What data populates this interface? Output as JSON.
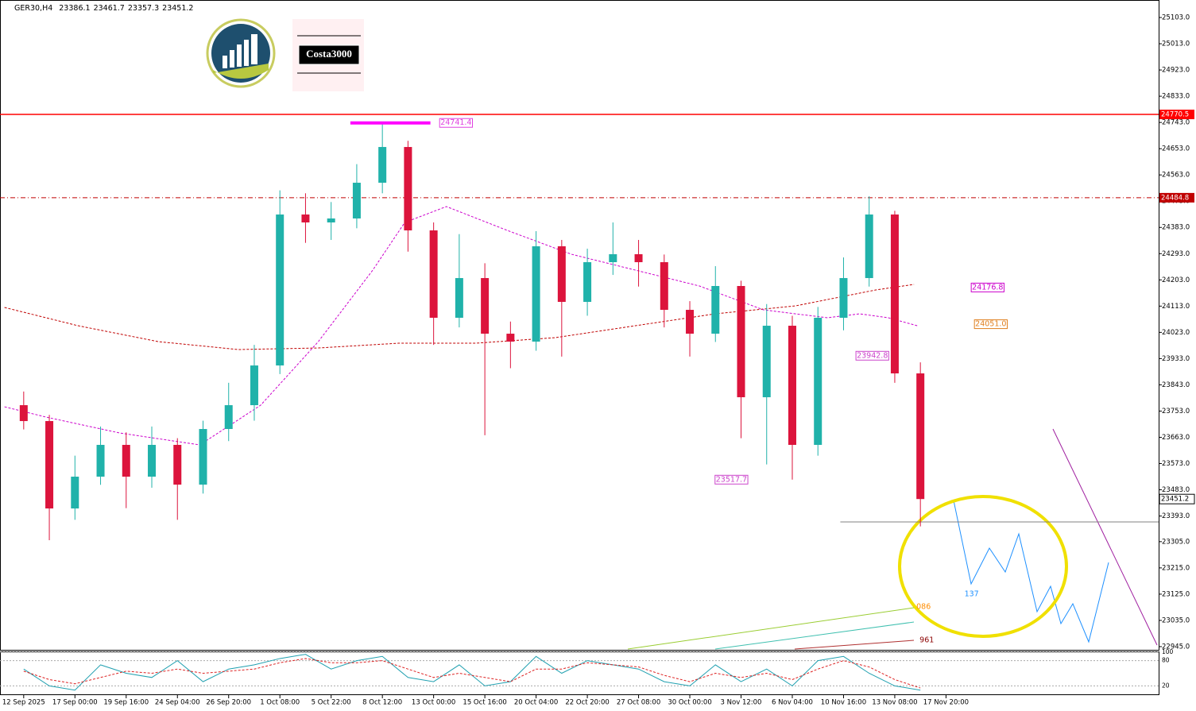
{
  "branding": {
    "watermark": "Costa3000"
  },
  "chart_data": [
    {
      "type": "candlestick",
      "title": "GER30,H4",
      "ohlc_readout": [
        23386.1,
        23461.7,
        23357.3,
        23451.2
      ],
      "xlim": [
        -7.4,
        354.4
      ],
      "ylim": [
        22934,
        25163
      ],
      "xticks": [
        {
          "value": 0,
          "label": "12 Sep 2025"
        },
        {
          "value": 16,
          "label": "17 Sep 00:00"
        },
        {
          "value": 32,
          "label": "19 Sep 16:00"
        },
        {
          "value": 48,
          "label": "24 Sep 04:00"
        },
        {
          "value": 64,
          "label": "26 Sep 20:00"
        },
        {
          "value": 80,
          "label": "1 Oct 08:00"
        },
        {
          "value": 96,
          "label": "5 Oct 22:00"
        },
        {
          "value": 112,
          "label": "8 Oct 12:00"
        },
        {
          "value": 128,
          "label": "13 Oct 00:00"
        },
        {
          "value": 144,
          "label": "15 Oct 16:00"
        },
        {
          "value": 160,
          "label": "20 Oct 04:00"
        },
        {
          "value": 176,
          "label": "22 Oct 20:00"
        },
        {
          "value": 192,
          "label": "27 Oct 08:00"
        },
        {
          "value": 208,
          "label": "30 Oct 00:00"
        },
        {
          "value": 224,
          "label": "3 Nov 12:00"
        },
        {
          "value": 240,
          "label": "6 Nov 04:00"
        },
        {
          "value": 256,
          "label": "10 Nov 16:00"
        },
        {
          "value": 272,
          "label": "13 Nov 08:00"
        },
        {
          "value": 288,
          "label": "17 Nov 20:00"
        }
      ],
      "yticks": [
        {
          "value": 25103,
          "label": "25103.0"
        },
        {
          "value": 25013,
          "label": "25013.0"
        },
        {
          "value": 24923,
          "label": "24923.0"
        },
        {
          "value": 24833,
          "label": "24833.0"
        },
        {
          "value": 24743,
          "label": "24743.0"
        },
        {
          "value": 24653,
          "label": "24653.0"
        },
        {
          "value": 24563,
          "label": "24563.0"
        },
        {
          "value": 24473,
          "label": "24473.0"
        },
        {
          "value": 24383,
          "label": "24383.0"
        },
        {
          "value": 24293,
          "label": "24293.0"
        },
        {
          "value": 24203,
          "label": "24203.0"
        },
        {
          "value": 24113,
          "label": "24113.0"
        },
        {
          "value": 24023,
          "label": "24023.0"
        },
        {
          "value": 23933,
          "label": "23933.0"
        },
        {
          "value": 23843,
          "label": "23843.0"
        },
        {
          "value": 23753,
          "label": "23753.0"
        },
        {
          "value": 23663,
          "label": "23663.0"
        },
        {
          "value": 23573,
          "label": "23573.0"
        },
        {
          "value": 23483,
          "label": "23483.0"
        },
        {
          "value": 23393,
          "label": "23393.0"
        },
        {
          "value": 23305,
          "label": "23305.0"
        },
        {
          "value": 23215,
          "label": "23215.0"
        },
        {
          "value": 23125,
          "label": "23125.0"
        },
        {
          "value": 23035,
          "label": "23035.0"
        },
        {
          "value": 22945,
          "label": "22945.0"
        }
      ],
      "up_color": "#20b2aa",
      "down_color": "#dc143c",
      "x": [
        0,
        8,
        16,
        24,
        32,
        40,
        48,
        56,
        64,
        72,
        80,
        88,
        96,
        104,
        112,
        120,
        128,
        136,
        144,
        152,
        160,
        168,
        176,
        184,
        192,
        200,
        208,
        216,
        224,
        232,
        240,
        248,
        256,
        264,
        272,
        280
      ],
      "open": [
        23773.2,
        23718.7,
        23418.9,
        23528.0,
        23637.0,
        23528.0,
        23637.0,
        23500.7,
        23691.5,
        23773.2,
        23909.4,
        24427.2,
        24400.0,
        24413.6,
        24536.2,
        24658.8,
        24372.7,
        24073.0,
        24209.2,
        24018.4,
        23991.2,
        24318.2,
        24127.5,
        24263.7,
        24291.0,
        24263.7,
        24100.2,
        24018.4,
        24182.0,
        23800.4,
        24045.7,
        23637.0,
        24073.0,
        24209.2,
        24427.2,
        23882.2
      ],
      "high": [
        23820,
        23740,
        23600,
        23700,
        23680,
        23700,
        23660,
        23720,
        23850,
        23980,
        24510,
        24500,
        24470,
        24600,
        24741.4,
        24680,
        24400,
        24360,
        24260,
        24060,
        24370,
        24340,
        24310,
        24400,
        24340,
        24290,
        24130,
        24250,
        24200,
        24120,
        24080,
        24110,
        24280,
        24490,
        24440,
        23920
      ],
      "low": [
        23690,
        23310,
        23380,
        23500,
        23420,
        23490,
        23380,
        23470,
        23650,
        23720,
        23880,
        24330,
        24340,
        24380,
        24500,
        24300,
        23980,
        24040,
        23670,
        23900,
        23960,
        23940,
        24080,
        24220,
        24180,
        24040,
        23940,
        23990,
        23660,
        23570,
        23517.7,
        23600,
        24030,
        24180,
        23850,
        23357.3
      ],
      "close": [
        23718.7,
        23418.9,
        23528.0,
        23637.0,
        23528.0,
        23637.0,
        23500.7,
        23691.5,
        23773.2,
        23909.4,
        24427.2,
        24400.0,
        24413.6,
        24536.2,
        24658.8,
        24372.7,
        24073.0,
        24209.2,
        24018.4,
        23991.2,
        24318.2,
        24127.5,
        24263.7,
        24291.0,
        24263.7,
        24100.2,
        24018.4,
        24182.0,
        23800.4,
        24045.7,
        23637.0,
        24073.0,
        24209.2,
        24427.2,
        23882.2,
        23451.2
      ],
      "ma": [
        {
          "color": "#c00000",
          "x": [
            -6,
            17,
            42,
            67,
            92,
            117,
            141,
            166,
            191,
            216,
            241,
            266,
            278
          ],
          "values": [
            24108.4,
            24045.7,
            23991.2,
            23964.0,
            23969.4,
            23985.7,
            23985.7,
            24004.8,
            24045.7,
            24086.6,
            24113.8,
            24168.3,
            24187.4
          ]
        },
        {
          "color": "#cc00cc",
          "x": [
            -6,
            7,
            30,
            55,
            74,
            92,
            109,
            119,
            132,
            151,
            171,
            191,
            211,
            231,
            251,
            261,
            270,
            279
          ],
          "values": [
            23767.7,
            23732.3,
            23677.8,
            23637.0,
            23773.2,
            23991.2,
            24236.5,
            24400.0,
            24454.5,
            24372.7,
            24291.0,
            24236.5,
            24182.0,
            24100.2,
            24073.0,
            24086.6,
            24073.0,
            24045.7
          ]
        }
      ],
      "levels": [
        {
          "value": 24770.5,
          "color": "#ff0000",
          "style": "solid"
        },
        {
          "value": 24484.8,
          "color": "#c00000",
          "style": "dashdot"
        },
        {
          "value": 23372.6,
          "color": "#808080",
          "style": "solid",
          "from": 255
        }
      ],
      "current": 23451.2,
      "annotations": [
        {
          "text": "24741.4",
          "x": 135,
          "y": 24741.4,
          "color": "#e040e0",
          "box": true,
          "highlight": [
            102,
            127
          ]
        },
        {
          "text": "24176.8",
          "x": 301,
          "y": 24176.8,
          "color": "#cc00cc",
          "box": true
        },
        {
          "text": "24051.0",
          "x": 302,
          "y": 24051.0,
          "color": "#e08020",
          "box": true
        },
        {
          "text": "23942.8",
          "x": 265,
          "y": 23942.8,
          "color": "#cc44cc",
          "box": true
        },
        {
          "text": "23517.7",
          "x": 221,
          "y": 23517.7,
          "color": "#cc44cc",
          "box": true
        },
        {
          "text": "137",
          "x": 296,
          "y": 23125,
          "color": "#1e90ff",
          "box": false
        },
        {
          "text": "086",
          "x": 281,
          "y": 23081,
          "color": "#ff8c00",
          "box": false
        },
        {
          "text": "961",
          "x": 282,
          "y": 22967,
          "color": "#8b0000",
          "box": false
        }
      ]
    },
    {
      "type": "oscillator",
      "ylim": [
        0,
        100
      ],
      "yticks": [
        20,
        80,
        100
      ],
      "x": [
        0,
        8,
        16,
        24,
        32,
        40,
        48,
        56,
        64,
        72,
        80,
        88,
        96,
        104,
        112,
        120,
        128,
        136,
        144,
        152,
        160,
        168,
        176,
        184,
        192,
        200,
        208,
        216,
        224,
        232,
        240,
        248,
        256,
        264,
        272,
        280
      ],
      "series": [
        {
          "color": "#20a0b0",
          "values": [
            60,
            20,
            10,
            70,
            50,
            40,
            80,
            30,
            60,
            70,
            85,
            95,
            60,
            80,
            90,
            40,
            30,
            70,
            20,
            30,
            90,
            50,
            80,
            70,
            60,
            30,
            20,
            70,
            30,
            60,
            20,
            80,
            90,
            50,
            20,
            10
          ]
        },
        {
          "color": "#dd2222",
          "values": [
            55,
            35,
            25,
            40,
            55,
            50,
            60,
            50,
            55,
            60,
            75,
            85,
            75,
            75,
            80,
            60,
            40,
            50,
            40,
            30,
            60,
            60,
            75,
            70,
            65,
            45,
            30,
            50,
            40,
            50,
            35,
            60,
            80,
            65,
            35,
            15
          ]
        }
      ]
    }
  ]
}
